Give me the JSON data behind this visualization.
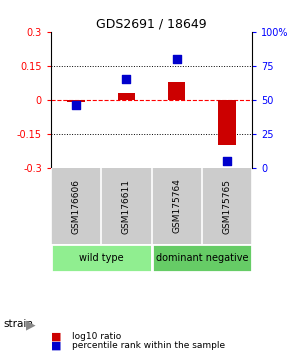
{
  "title": "GDS2691 / 18649",
  "samples": [
    "GSM176606",
    "GSM176611",
    "GSM175764",
    "GSM175765"
  ],
  "log10_ratio": [
    -0.01,
    0.03,
    0.08,
    -0.2
  ],
  "percentile_rank": [
    46,
    65,
    80,
    5
  ],
  "groups": [
    {
      "label": "wild type",
      "samples": [
        0,
        1
      ],
      "color": "#90ee90"
    },
    {
      "label": "dominant negative",
      "samples": [
        2,
        3
      ],
      "color": "#66cc66"
    }
  ],
  "ylim_left": [
    -0.3,
    0.3
  ],
  "ylim_right": [
    0,
    100
  ],
  "yticks_left": [
    -0.3,
    -0.15,
    0,
    0.15,
    0.3
  ],
  "yticks_right": [
    0,
    25,
    50,
    75,
    100
  ],
  "ytick_labels_right": [
    "0",
    "25",
    "50",
    "75",
    "100%"
  ],
  "hlines": [
    -0.15,
    0.15
  ],
  "zero_line": 0,
  "bar_color": "#cc0000",
  "square_color": "#0000cc",
  "bar_width": 0.35,
  "square_size": 40,
  "strain_label": "strain",
  "legend_items": [
    {
      "color": "#cc0000",
      "label": "log10 ratio"
    },
    {
      "color": "#0000cc",
      "label": "percentile rank within the sample"
    }
  ],
  "background_color": "#ffffff",
  "plot_bg_color": "#ffffff",
  "label_area_color": "#cccccc",
  "group_color_1": "#90ee90",
  "group_color_2": "#66cc66"
}
